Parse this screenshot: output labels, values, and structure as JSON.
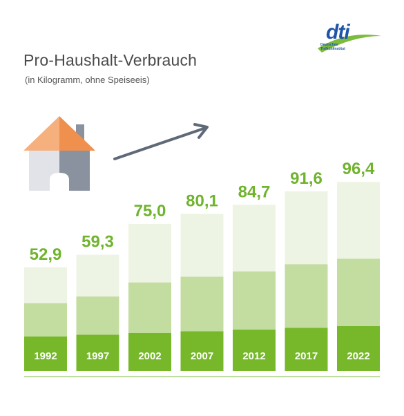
{
  "header": {
    "title": "Pro-Haushalt-Verbrauch",
    "subtitle": "(in Kilogramm, ohne Speiseeis)"
  },
  "logo": {
    "word": "dti",
    "line1": "Deutsches",
    "line2": "Tiefkühlinstitut"
  },
  "colors": {
    "dark_green": "#76b82a",
    "mid_green": "#c3dc9f",
    "light_green": "#eef4e4",
    "label_green": "#6fb42c",
    "axis": "#7dbb3f",
    "house_roof_light": "#f5b07e",
    "house_roof_dark": "#f0904f",
    "house_wall_light": "#e1e3e8",
    "house_wall_dark": "#8a929f",
    "arrow": "#5f6977",
    "logo_blue": "#1e55a8",
    "logo_green": "#7dbb3f"
  },
  "chart_data": {
    "type": "bar",
    "categories": [
      "1992",
      "1997",
      "2002",
      "2007",
      "2012",
      "2017",
      "2022"
    ],
    "values": [
      52.9,
      59.3,
      75.0,
      80.1,
      84.7,
      91.6,
      96.4
    ],
    "value_labels": [
      "52,9",
      "59,3",
      "75,0",
      "80,1",
      "84,7",
      "91,6",
      "96,4"
    ],
    "title": "Pro-Haushalt-Verbrauch",
    "subtitle": "(in Kilogramm, ohne Speiseeis)",
    "xlabel": "",
    "ylabel": "",
    "ylim": [
      0,
      100
    ],
    "grid": false,
    "legend": "none"
  }
}
